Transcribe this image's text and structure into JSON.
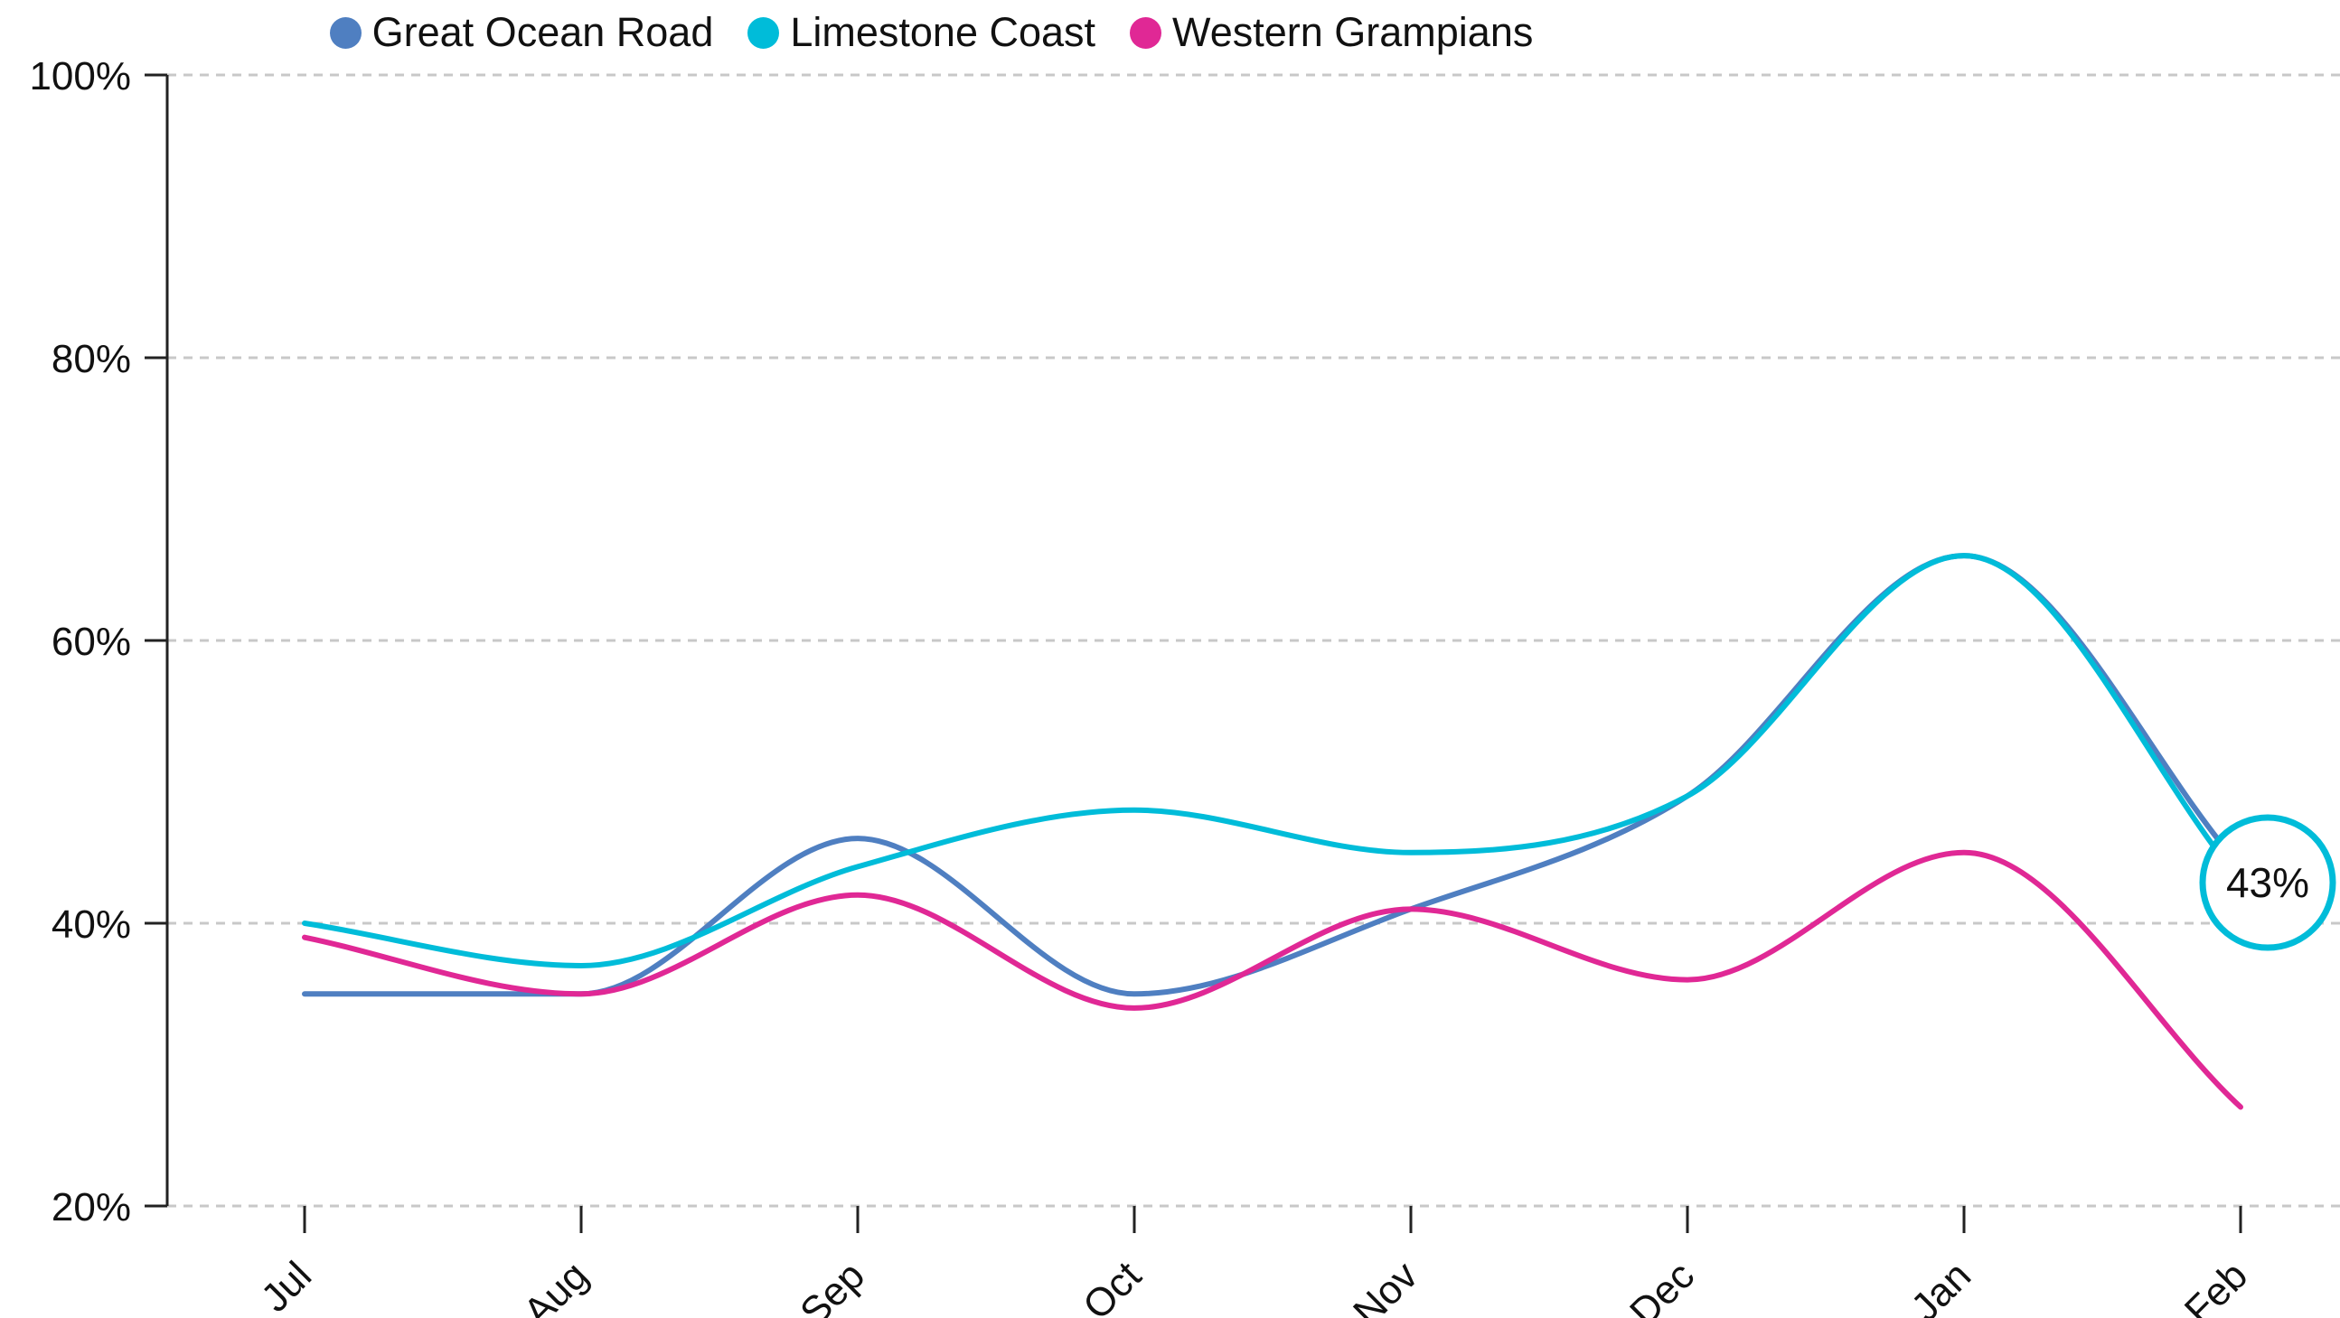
{
  "chart_data": {
    "type": "line",
    "categories": [
      "Jul",
      "Aug",
      "Sep",
      "Oct",
      "Nov",
      "Dec",
      "Jan",
      "Feb"
    ],
    "series": [
      {
        "name": "Great Ocean Road",
        "color": "#4f7fc1",
        "values": [
          35,
          35,
          46,
          35,
          41,
          49,
          66,
          44
        ]
      },
      {
        "name": "Limestone Coast",
        "color": "#00bcd9",
        "values": [
          40,
          37,
          44,
          48,
          45,
          49,
          66,
          43
        ]
      },
      {
        "name": "Western Grampians",
        "color": "#e02895",
        "values": [
          39,
          35,
          42,
          34,
          41,
          36,
          45,
          27
        ]
      }
    ],
    "y_ticks": [
      "20%",
      "40%",
      "60%",
      "80%",
      "100%"
    ],
    "ylim": [
      20,
      100
    ],
    "grid": true,
    "legend_position": "top",
    "highlight": {
      "series": "Limestone Coast",
      "category": "Feb",
      "label": "43%"
    }
  }
}
